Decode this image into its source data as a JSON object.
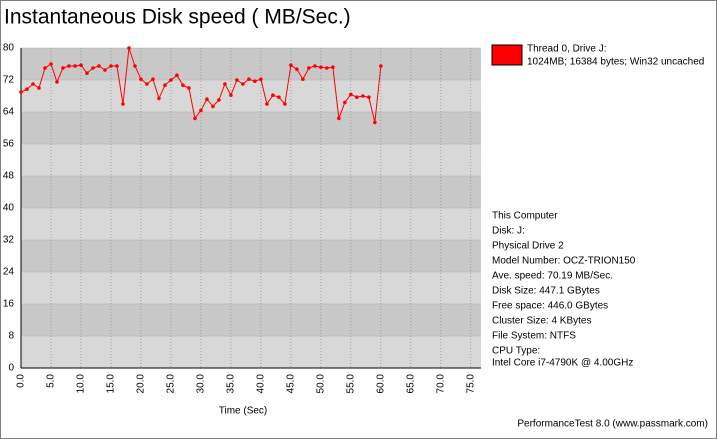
{
  "chart_data": {
    "type": "line",
    "title": "Instantaneous Disk speed ( MB/Sec.)",
    "x_label": "Time (Sec)",
    "x": [
      0,
      1,
      2,
      3,
      4,
      5,
      6,
      7,
      8,
      9,
      10,
      11,
      12,
      13,
      14,
      15,
      16,
      17,
      18,
      19,
      20,
      21,
      22,
      23,
      24,
      25,
      26,
      27,
      28,
      29,
      30,
      31,
      32,
      33,
      34,
      35,
      36,
      37,
      38,
      39,
      40,
      41,
      42,
      43,
      44,
      45,
      46,
      47,
      48,
      49,
      50,
      51,
      52,
      53,
      54,
      55,
      56,
      57,
      58,
      59,
      60
    ],
    "series": [
      {
        "name": "Thread 0, Drive J:",
        "description": "1024MB; 16384 bytes; Win32 uncached",
        "color": "#ff0000",
        "values": [
          69,
          69.7,
          71,
          70,
          75,
          76,
          71.5,
          75,
          75.5,
          75.5,
          75.7,
          73.7,
          75,
          75.5,
          74.5,
          75.5,
          75.5,
          66,
          80,
          75.5,
          72.2,
          71,
          72.2,
          67.4,
          70.7,
          72,
          73.2,
          70.7,
          70,
          62.4,
          64.4,
          67.2,
          65.4,
          67,
          71,
          68.2,
          72,
          71,
          72.2,
          71.7,
          72.2,
          66,
          68.2,
          67.7,
          66,
          75.7,
          74.7,
          72.2,
          75,
          75.5,
          75.2,
          75,
          75.2,
          62.4,
          66.4,
          68.4,
          67.7,
          68,
          67.7,
          61.4,
          75.5
        ]
      }
    ],
    "xlim": [
      0,
      76.7
    ],
    "ylim": [
      0,
      80
    ],
    "yticks": [
      0,
      8,
      16,
      24,
      32,
      40,
      48,
      56,
      64,
      72,
      80
    ],
    "xticks": [
      {
        "value": 0,
        "label": "0.0"
      },
      {
        "value": 5,
        "label": "5.0"
      },
      {
        "value": 10,
        "label": "10.0"
      },
      {
        "value": 15,
        "label": "15.0"
      },
      {
        "value": 20,
        "label": "20.0"
      },
      {
        "value": 25,
        "label": "25.0"
      },
      {
        "value": 30,
        "label": "30.0"
      },
      {
        "value": 35,
        "label": "35.0"
      },
      {
        "value": 40,
        "label": "40.0"
      },
      {
        "value": 45,
        "label": "45.0"
      },
      {
        "value": 50,
        "label": "50.0"
      },
      {
        "value": 55,
        "label": "55.0"
      },
      {
        "value": 60,
        "label": "60.0"
      },
      {
        "value": 65,
        "label": "65.0"
      },
      {
        "value": 70,
        "label": "70.0"
      },
      {
        "value": 75,
        "label": "75.0"
      }
    ],
    "grid": true,
    "band_colors": [
      "#c8c8c8",
      "#d8d8d8"
    ],
    "info": [
      "This Computer",
      "Disk: J:",
      "Physical Drive 2",
      "Model Number: OCZ-TRION150",
      "Ave. speed: 70.19 MB/Sec.",
      "Disk Size: 447.1 GBytes",
      "Free space: 446.0 GBytes",
      "Cluster Size: 4 KBytes",
      "File System: NTFS",
      "CPU Type:",
      "Intel Core i7-4790K @ 4.00GHz"
    ],
    "footer": "PerformanceTest 8.0 (www.passmark.com)"
  }
}
